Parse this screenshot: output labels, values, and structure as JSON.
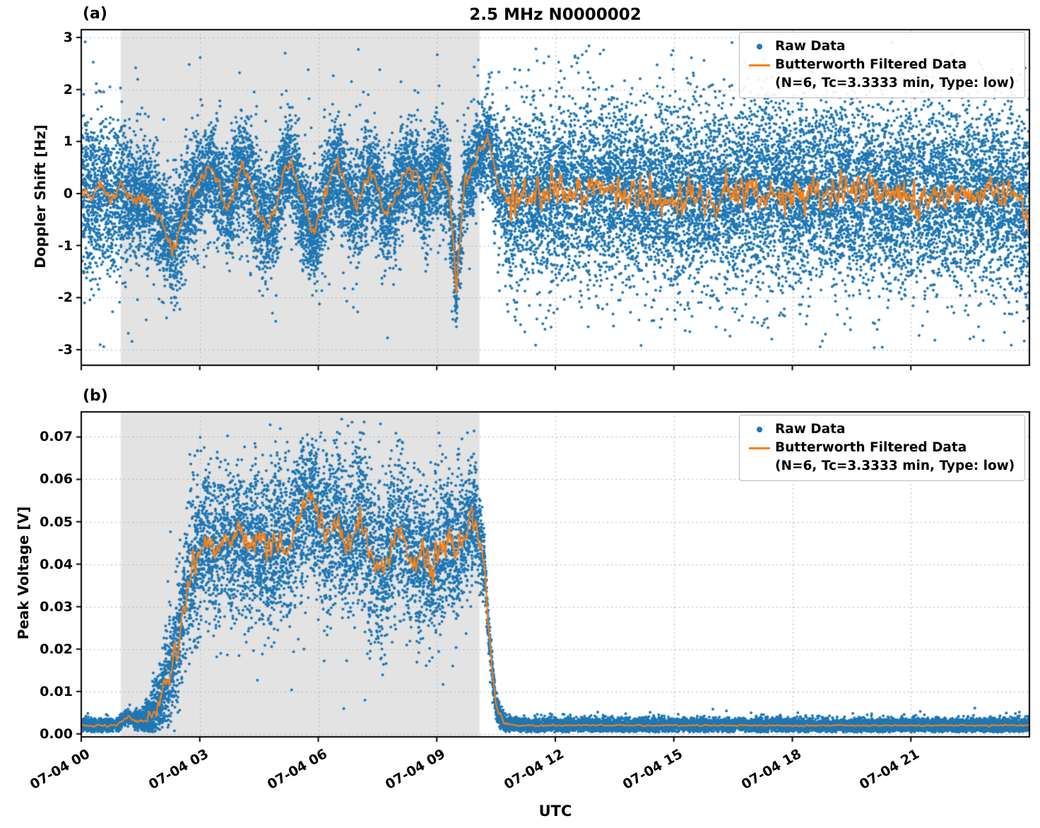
{
  "figure": {
    "title": "2.5 MHz N0000002",
    "xlabel": "UTC",
    "panel_a_label": "(a)",
    "panel_b_label": "(b)",
    "colors": {
      "raw": "#1f77b4",
      "filtered": "#ff7f0e",
      "shading": "rgba(128,128,128,0.22)",
      "grid": "#b5b5b5",
      "spine": "#000000"
    },
    "legend": {
      "raw_label": "Raw Data",
      "filtered_label": "Butterworth Filtered Data",
      "filtered_sublabel": "(N=6, Tc=3.3333 min, Type: low)",
      "location": "upper right"
    }
  },
  "chart_data": [
    {
      "type": "scatter",
      "panel": "a",
      "ylabel": "Doppler Shift [Hz]",
      "ylim": [
        -3.3,
        3.15
      ],
      "yticks": [
        -3,
        -2,
        -1,
        0,
        1,
        2,
        3
      ],
      "ytick_labels": [
        "-3",
        "-2",
        "-1",
        "0",
        "1",
        "2",
        "3"
      ],
      "xlim_hours": [
        0,
        24
      ],
      "xticks_hours": [
        0,
        3,
        6,
        9,
        12,
        15,
        18,
        21
      ],
      "xtick_labels": [
        "07-04 00",
        "07-04 03",
        "07-04 06",
        "07-04 09",
        "07-04 12",
        "07-04 15",
        "07-04 18",
        "07-04 21"
      ],
      "show_xtick_labels": false,
      "grid": true,
      "shaded_hours": [
        1.0,
        10.08
      ],
      "series": [
        {
          "name": "Raw Data",
          "type": "scatter",
          "count": 20000,
          "spread_keypoints": {
            "hours": [
              0,
              0.8,
              1.2,
              2.0,
              3.0,
              5.0,
              7.0,
              9.0,
              9.8,
              10.2,
              10.5,
              10.8,
              12,
              24
            ],
            "sigma": [
              0.8,
              0.72,
              0.6,
              0.52,
              0.5,
              0.52,
              0.5,
              0.5,
              0.45,
              0.4,
              0.55,
              0.8,
              0.85,
              0.85
            ]
          },
          "outlier_fraction": 0.04,
          "outlier_scale": 2.3,
          "clamp": [
            -3.05,
            2.92
          ]
        },
        {
          "name": "Butterworth Filtered Data (N=6, Tc=3.3333 min, Type: low)",
          "type": "line",
          "keypoints": {
            "hours": [
              0,
              0.25,
              0.5,
              0.75,
              1.0,
              1.3,
              1.6,
              1.9,
              2.1,
              2.3,
              2.5,
              2.7,
              2.9,
              3.1,
              3.3,
              3.5,
              3.7,
              3.9,
              4.1,
              4.3,
              4.5,
              4.7,
              4.9,
              5.1,
              5.3,
              5.5,
              5.7,
              5.9,
              6.1,
              6.3,
              6.5,
              6.7,
              6.9,
              7.1,
              7.3,
              7.5,
              7.7,
              7.9,
              8.1,
              8.3,
              8.5,
              8.7,
              8.9,
              9.1,
              9.3,
              9.42,
              9.5,
              9.58,
              9.7,
              9.9,
              10.1,
              10.3,
              10.45,
              10.6,
              10.8,
              11.5,
              13,
              15,
              17,
              19,
              21,
              23,
              23.7,
              24
            ],
            "values": [
              0.05,
              -0.12,
              0.15,
              -0.1,
              0.1,
              -0.15,
              -0.05,
              -0.35,
              -0.6,
              -1.05,
              -0.7,
              -0.2,
              0.1,
              0.3,
              0.5,
              0.1,
              -0.3,
              0.2,
              0.55,
              0.2,
              -0.4,
              -0.65,
              -0.3,
              0.4,
              0.55,
              0.1,
              -0.5,
              -0.75,
              -0.3,
              0.3,
              0.5,
              0.1,
              -0.3,
              0.0,
              0.4,
              0.1,
              -0.4,
              -0.2,
              0.2,
              0.5,
              0.3,
              -0.1,
              0.3,
              0.55,
              0.2,
              -1.0,
              -1.85,
              -0.9,
              0.2,
              0.5,
              0.75,
              1.0,
              0.6,
              0.1,
              -0.05,
              0.0,
              0.05,
              -0.05,
              0.0,
              0.05,
              -0.05,
              0.0,
              -0.1,
              -0.55
            ]
          },
          "noise_keypoints": {
            "hours": [
              0,
              10.5,
              10.8,
              24
            ],
            "amplitude": [
              0.12,
              0.12,
              0.3,
              0.3
            ]
          }
        }
      ]
    },
    {
      "type": "scatter",
      "panel": "b",
      "ylabel": "Peak Voltage [V]",
      "ylim": [
        -0.0007,
        0.0759
      ],
      "yticks": [
        0.0,
        0.01,
        0.02,
        0.03,
        0.04,
        0.05,
        0.06,
        0.07
      ],
      "ytick_labels": [
        "0.00",
        "0.01",
        "0.02",
        "0.03",
        "0.04",
        "0.05",
        "0.06",
        "0.07"
      ],
      "xlim_hours": [
        0,
        24
      ],
      "xticks_hours": [
        0,
        3,
        6,
        9,
        12,
        15,
        18,
        21
      ],
      "xtick_labels": [
        "07-04 00",
        "07-04 03",
        "07-04 06",
        "07-04 09",
        "07-04 12",
        "07-04 15",
        "07-04 18",
        "07-04 21"
      ],
      "show_xtick_labels": true,
      "grid": true,
      "shaded_hours": [
        1.0,
        10.08
      ],
      "series": [
        {
          "name": "Raw Data",
          "type": "scatter",
          "count": 17000,
          "spread_keypoints": {
            "hours": [
              0,
              1.3,
              1.7,
              2.0,
              2.3,
              2.6,
              3.0,
              4.0,
              5.0,
              6.0,
              7.0,
              8.0,
              9.0,
              9.7,
              10.05,
              10.3,
              10.55,
              10.8,
              24
            ],
            "sigma": [
              0.0008,
              0.0008,
              0.002,
              0.004,
              0.006,
              0.008,
              0.009,
              0.0085,
              0.009,
              0.0095,
              0.009,
              0.009,
              0.0085,
              0.008,
              0.006,
              0.003,
              0.0012,
              0.0008,
              0.0008
            ]
          },
          "outlier_fraction": 0.03,
          "outlier_scale": 2.0,
          "clamp": [
            0.0004,
            0.0742
          ]
        },
        {
          "name": "Butterworth Filtered Data (N=6, Tc=3.3333 min, Type: low)",
          "type": "line",
          "keypoints": {
            "hours": [
              0,
              0.9,
              1.1,
              1.2,
              1.35,
              1.6,
              1.85,
              2.05,
              2.25,
              2.45,
              2.6,
              2.8,
              3.0,
              3.2,
              3.4,
              3.6,
              3.8,
              4.0,
              4.2,
              4.4,
              4.6,
              4.8,
              5.0,
              5.2,
              5.4,
              5.6,
              5.8,
              5.95,
              6.1,
              6.3,
              6.5,
              6.7,
              6.9,
              7.1,
              7.3,
              7.5,
              7.7,
              7.9,
              8.1,
              8.3,
              8.5,
              8.7,
              8.9,
              9.1,
              9.3,
              9.5,
              9.7,
              9.9,
              10.05,
              10.2,
              10.35,
              10.5,
              10.7,
              11.0,
              12,
              16,
              20,
              24
            ],
            "values": [
              0.002,
              0.002,
              0.0035,
              0.004,
              0.003,
              0.003,
              0.005,
              0.009,
              0.015,
              0.022,
              0.03,
              0.038,
              0.043,
              0.046,
              0.042,
              0.047,
              0.044,
              0.048,
              0.043,
              0.046,
              0.044,
              0.042,
              0.046,
              0.044,
              0.048,
              0.052,
              0.056,
              0.052,
              0.049,
              0.047,
              0.051,
              0.044,
              0.048,
              0.051,
              0.044,
              0.04,
              0.038,
              0.046,
              0.048,
              0.043,
              0.04,
              0.042,
              0.039,
              0.044,
              0.046,
              0.042,
              0.047,
              0.051,
              0.048,
              0.04,
              0.02,
              0.006,
              0.0025,
              0.002,
              0.002,
              0.002,
              0.002,
              0.002
            ]
          },
          "noise_keypoints": {
            "hours": [
              0,
              1.5,
              2.2,
              9.9,
              10.5,
              10.9,
              24
            ],
            "amplitude": [
              0.0002,
              0.0003,
              0.0028,
              0.0028,
              0.0008,
              0.00015,
              0.00015
            ]
          }
        }
      ]
    }
  ]
}
